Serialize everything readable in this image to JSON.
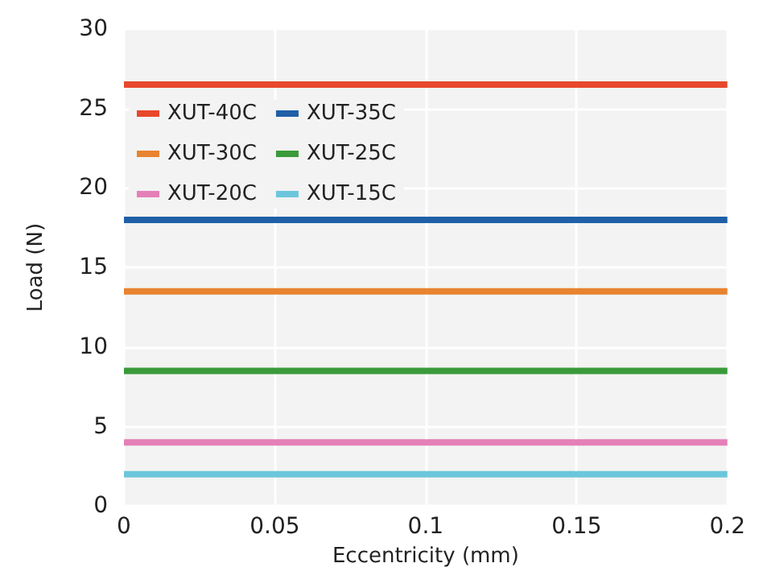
{
  "chart_data": {
    "type": "line",
    "xlabel": "Eccentricity (mm)",
    "ylabel": "Load (N)",
    "x": [
      0,
      0.2
    ],
    "series": [
      {
        "name": "XUT-40C",
        "color": "#e8482c",
        "values": [
          26.5,
          26.5
        ]
      },
      {
        "name": "XUT-35C",
        "color": "#1f5fa8",
        "values": [
          18,
          18
        ]
      },
      {
        "name": "XUT-30C",
        "color": "#e8832f",
        "values": [
          13.5,
          13.5
        ]
      },
      {
        "name": "XUT-25C",
        "color": "#3a9a3a",
        "values": [
          8.5,
          8.5
        ]
      },
      {
        "name": "XUT-20C",
        "color": "#e57fb8",
        "values": [
          4,
          4
        ]
      },
      {
        "name": "XUT-15C",
        "color": "#6cc6dc",
        "values": [
          2,
          2
        ]
      }
    ],
    "xlim": [
      0,
      0.2
    ],
    "xticks": [
      0,
      0.05,
      0.1,
      0.15,
      0.2
    ],
    "ylim": [
      0,
      30
    ],
    "yticks": [
      0,
      5,
      10,
      15,
      20,
      25,
      30
    ],
    "grid": true,
    "legend": "top left",
    "marker": "none",
    "line_style": "solid"
  }
}
